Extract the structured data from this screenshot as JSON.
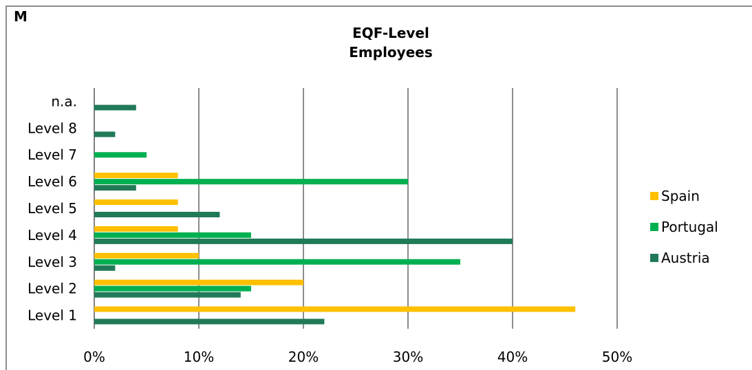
{
  "corner_label": "M",
  "chart_data": {
    "type": "bar",
    "orientation": "horizontal",
    "title": [
      "EQF-Level",
      "Employees"
    ],
    "categories": [
      "Level 1",
      "Level 2",
      "Level 3",
      "Level 4",
      "Level 5",
      "Level 6",
      "Level 7",
      "Level 8",
      "n.a."
    ],
    "series": [
      {
        "name": "Spain",
        "color": "#FFC000",
        "values": [
          46,
          20,
          10,
          8,
          8,
          8,
          0,
          0,
          0
        ]
      },
      {
        "name": "Portugal",
        "color": "#00B050",
        "values": [
          0,
          15,
          35,
          15,
          0,
          30,
          5,
          0,
          0
        ]
      },
      {
        "name": "Austria",
        "color": "#217A57",
        "values": [
          22,
          14,
          2,
          40,
          12,
          4,
          0,
          2,
          4
        ]
      }
    ],
    "xlim": [
      0,
      50
    ],
    "xticks": [
      "0%",
      "10%",
      "20%",
      "30%",
      "40%",
      "50%"
    ],
    "x_unit": "percent",
    "grid": "vertical",
    "legend": "right"
  }
}
